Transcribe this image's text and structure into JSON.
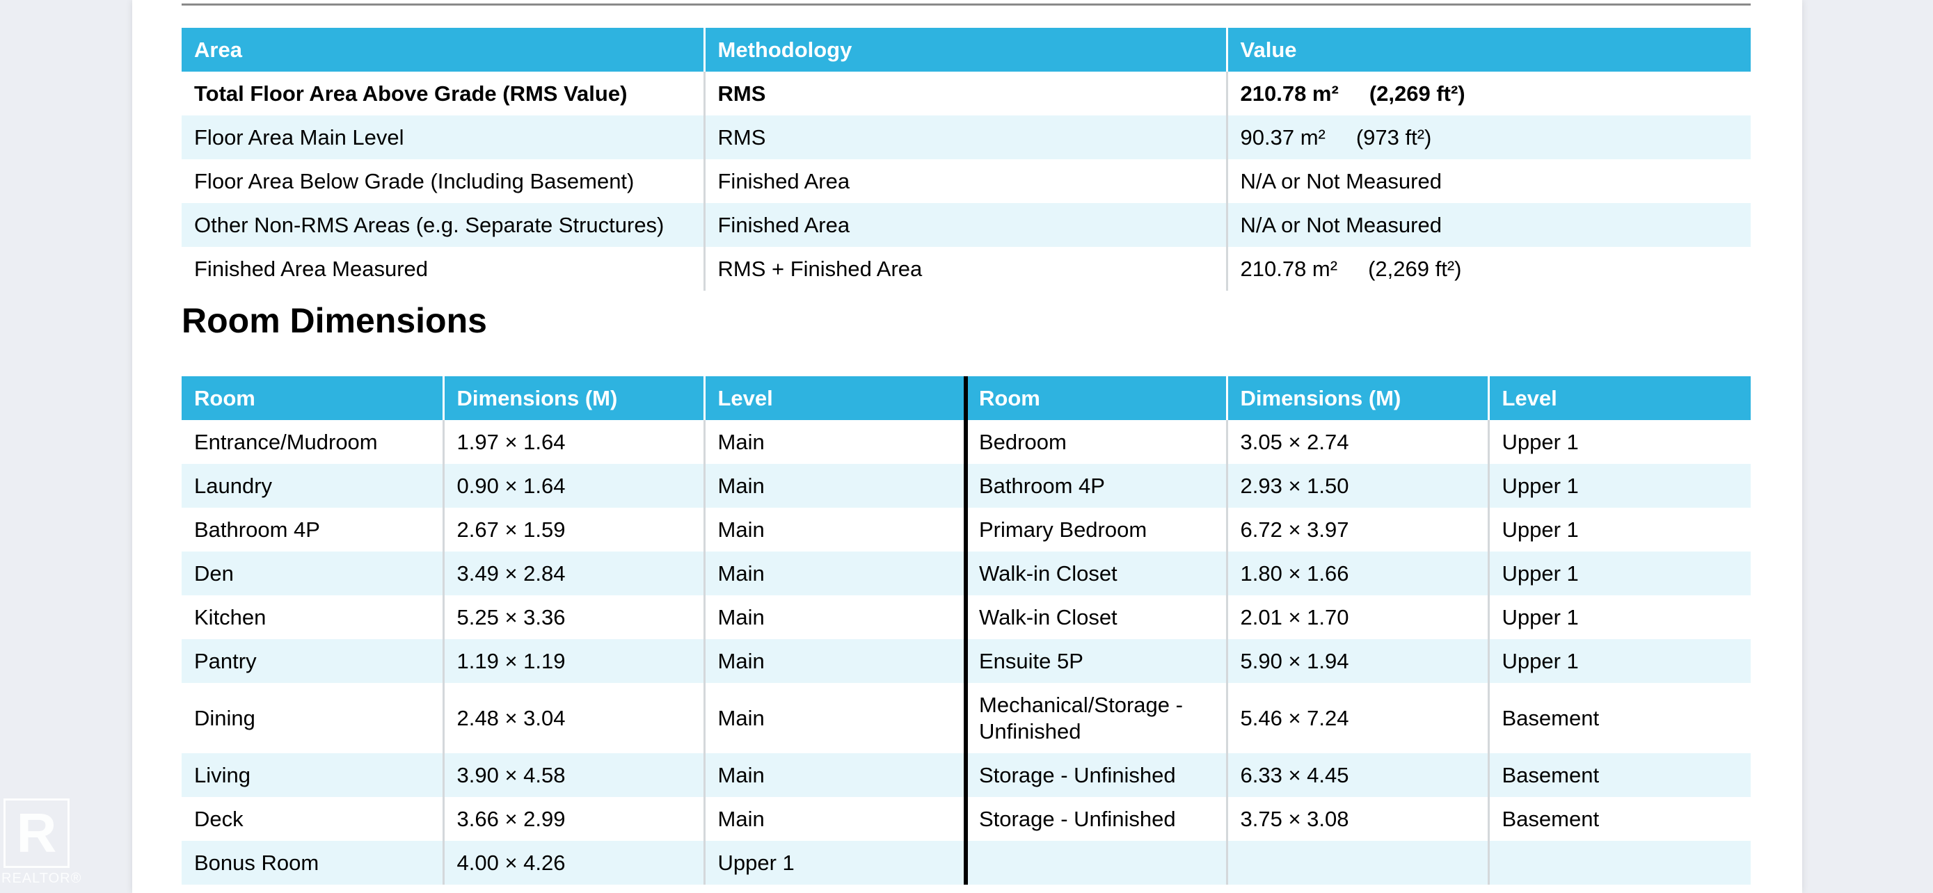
{
  "area_table": {
    "headers": [
      "Area",
      "Methodology",
      "Value"
    ],
    "rows": [
      {
        "area": "Total Floor Area Above Grade (RMS Value)",
        "method": "RMS",
        "metric": "210.78 m²",
        "imperial": "(2,269 ft²)"
      },
      {
        "area": "Floor Area Main Level",
        "method": "RMS",
        "metric": "90.37 m²",
        "imperial": "(973 ft²)"
      },
      {
        "area": "Floor Area Below Grade (Including Basement)",
        "method": "Finished Area",
        "metric": "N/A or Not Measured",
        "imperial": ""
      },
      {
        "area": "Other Non-RMS Areas (e.g. Separate Structures)",
        "method": "Finished Area",
        "metric": "N/A or Not Measured",
        "imperial": ""
      },
      {
        "area": "Finished Area Measured",
        "method": "RMS + Finished Area",
        "metric": "210.78 m²",
        "imperial": "(2,269 ft²)"
      }
    ]
  },
  "room_section": {
    "title": "Room Dimensions",
    "headers": [
      "Room",
      "Dimensions (M)",
      "Level",
      "Room",
      "Dimensions (M)",
      "Level"
    ],
    "rows": [
      [
        "Entrance/Mudroom",
        "1.97 × 1.64",
        "Main",
        "Bedroom",
        "3.05 × 2.74",
        "Upper 1"
      ],
      [
        "Laundry",
        "0.90 × 1.64",
        "Main",
        "Bathroom 4P",
        "2.93 × 1.50",
        "Upper 1"
      ],
      [
        "Bathroom 4P",
        "2.67 × 1.59",
        "Main",
        "Primary Bedroom",
        "6.72 × 3.97",
        "Upper 1"
      ],
      [
        "Den",
        "3.49 × 2.84",
        "Main",
        "Walk-in Closet",
        "1.80 × 1.66",
        "Upper 1"
      ],
      [
        "Kitchen",
        "5.25 × 3.36",
        "Main",
        "Walk-in Closet",
        "2.01 × 1.70",
        "Upper 1"
      ],
      [
        "Pantry",
        "1.19 × 1.19",
        "Main",
        "Ensuite 5P",
        "5.90 × 1.94",
        "Upper 1"
      ],
      [
        "Dining",
        "2.48 × 3.04",
        "Main",
        "Mechanical/Storage - Unfinished",
        "5.46 × 7.24",
        "Basement"
      ],
      [
        "Living",
        "3.90 × 4.58",
        "Main",
        "Storage - Unfinished",
        "6.33 × 4.45",
        "Basement"
      ],
      [
        "Deck",
        "3.66 × 2.99",
        "Main",
        "Storage - Unfinished",
        "3.75 × 3.08",
        "Basement"
      ],
      [
        "Bonus Room",
        "4.00 × 4.26",
        "Upper 1",
        "",
        "",
        ""
      ]
    ]
  },
  "watermark": {
    "logo_letter": "R",
    "logo_text": "REALTOR®"
  }
}
